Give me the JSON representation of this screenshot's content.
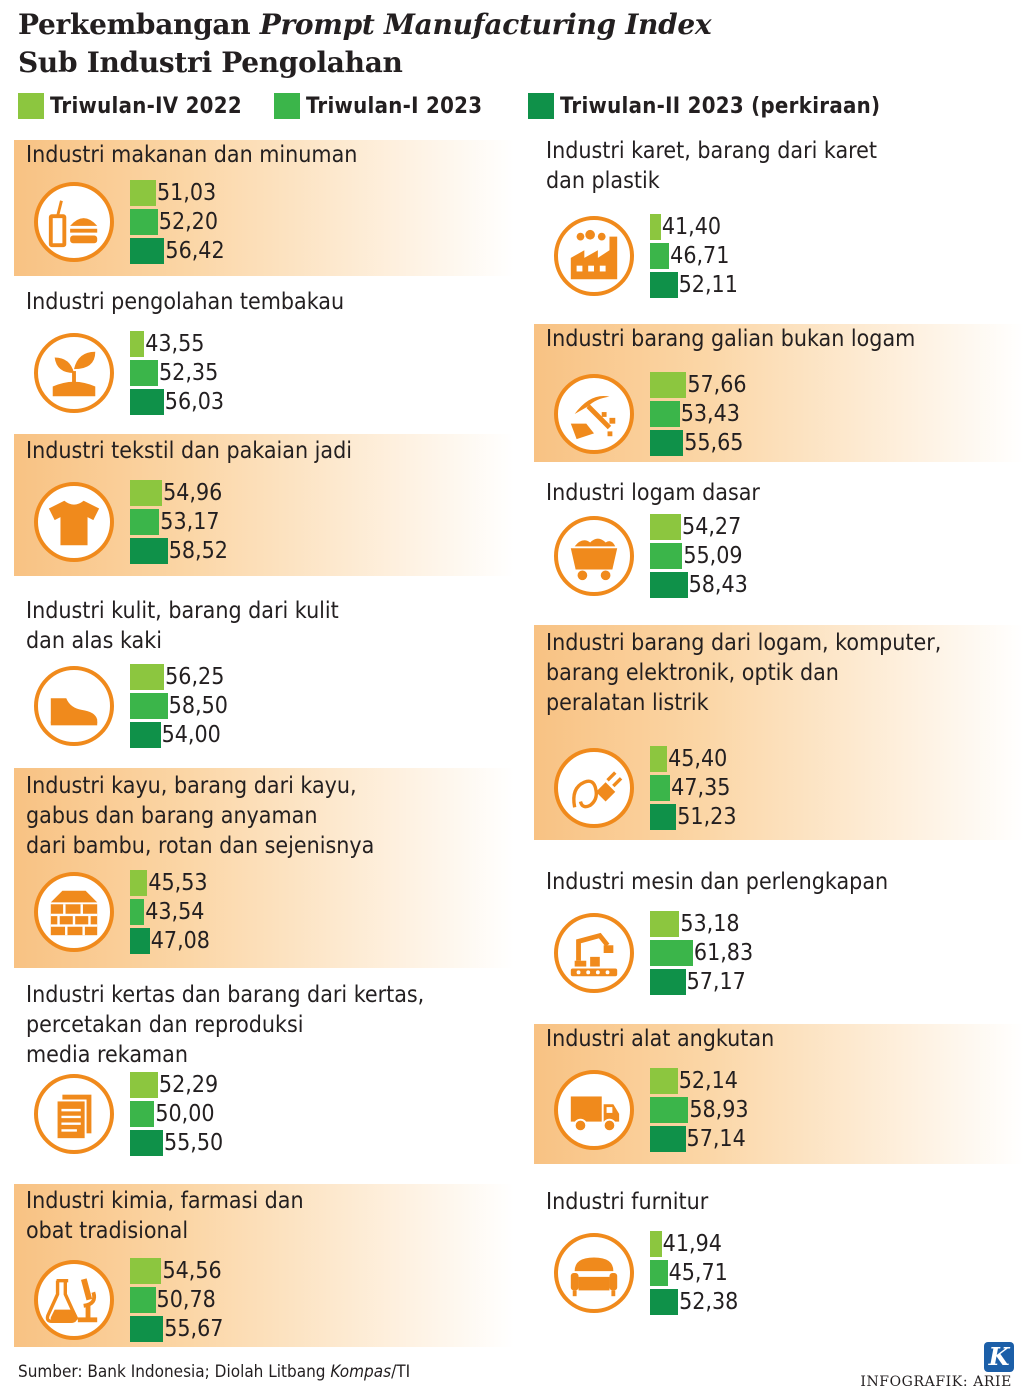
{
  "title": {
    "line1_a": "Perkembangan ",
    "line1_b": "Prompt Manufacturing Index",
    "line2": "Sub Industri Pengolahan"
  },
  "colors": {
    "q4_2022": "#8cc63f",
    "q1_2023": "#3bb54a",
    "q2_2023": "#0f9149",
    "icon": "#f08a1c"
  },
  "legend": [
    "Triwulan-IV 2022",
    "Triwulan-I 2023",
    "Triwulan-II 2023 (perkiraan)"
  ],
  "chart_data": {
    "type": "bar",
    "title": "Perkembangan Prompt Manufacturing Index Sub Industri Pengolahan",
    "series_names": [
      "Triwulan-IV 2022",
      "Triwulan-I 2023",
      "Triwulan-II 2023 (perkiraan)"
    ],
    "panels": [
      {
        "label": "Industri makanan dan minuman",
        "icon": "food-drink-icon",
        "values": [
          51.03,
          52.2,
          56.42
        ],
        "labels": [
          "51,03",
          "52,20",
          "56,42"
        ]
      },
      {
        "label": "Industri pengolahan tembakau",
        "icon": "plant-icon",
        "values": [
          43.55,
          52.35,
          56.03
        ],
        "labels": [
          "43,55",
          "52,35",
          "56,03"
        ]
      },
      {
        "label": "Industri tekstil dan pakaian jadi",
        "icon": "tshirt-icon",
        "values": [
          54.96,
          53.17,
          58.52
        ],
        "labels": [
          "54,96",
          "53,17",
          "58,52"
        ]
      },
      {
        "label": "Industri kulit, barang dari kulit\ndan alas kaki",
        "icon": "shoe-icon",
        "values": [
          56.25,
          58.5,
          54.0
        ],
        "labels": [
          "56,25",
          "58,50",
          "54,00"
        ]
      },
      {
        "label": "Industri kayu, barang dari kayu,\ngabus dan barang anyaman\ndari bambu, rotan dan sejenisnya",
        "icon": "wood-crate-icon",
        "values": [
          45.53,
          43.54,
          47.08
        ],
        "labels": [
          "45,53",
          "43,54",
          "47,08"
        ]
      },
      {
        "label": "Industri kertas dan barang dari kertas,\npercetakan dan reproduksi\nmedia rekaman",
        "icon": "paper-icon",
        "values": [
          52.29,
          50.0,
          55.5
        ],
        "labels": [
          "52,29",
          "50,00",
          "55,50"
        ]
      },
      {
        "label": "Industri kimia, farmasi dan\nobat tradisional",
        "icon": "chemistry-icon",
        "values": [
          54.56,
          50.78,
          55.67
        ],
        "labels": [
          "54,56",
          "50,78",
          "55,67"
        ]
      },
      {
        "label": "Industri karet, barang dari karet\ndan plastik",
        "icon": "factory-icon",
        "values": [
          41.4,
          46.71,
          52.11
        ],
        "labels": [
          "41,40",
          "46,71",
          "52,11"
        ]
      },
      {
        "label": "Industri barang galian bukan logam",
        "icon": "mining-icon",
        "values": [
          57.66,
          53.43,
          55.65
        ],
        "labels": [
          "57,66",
          "53,43",
          "55,65"
        ]
      },
      {
        "label": "Industri logam dasar",
        "icon": "mine-cart-icon",
        "values": [
          54.27,
          55.09,
          58.43
        ],
        "labels": [
          "54,27",
          "55,09",
          "58,43"
        ]
      },
      {
        "label": "Industri barang dari logam, komputer,\nbarang elektronik, optik dan\nperalatan listrik",
        "icon": "plug-icon",
        "values": [
          45.4,
          47.35,
          51.23
        ],
        "labels": [
          "45,40",
          "47,35",
          "51,23"
        ]
      },
      {
        "label": "Industri mesin dan perlengkapan",
        "icon": "robot-arm-icon",
        "values": [
          53.18,
          61.83,
          57.17
        ],
        "labels": [
          "53,18",
          "61,83",
          "57,17"
        ]
      },
      {
        "label": "Industri alat angkutan",
        "icon": "truck-icon",
        "values": [
          52.14,
          58.93,
          57.14
        ],
        "labels": [
          "52,14",
          "58,93",
          "57,14"
        ]
      },
      {
        "label": "Industri furnitur",
        "icon": "sofa-icon",
        "values": [
          41.94,
          45.71,
          52.38
        ],
        "labels": [
          "41,94",
          "45,71",
          "52,38"
        ]
      }
    ]
  },
  "footer": {
    "source_a": "Sumber: Bank Indonesia; Diolah Litbang ",
    "source_b": "Kompas",
    "source_c": "/TI",
    "credit": "INFOGRAFIK: ARIE",
    "logo": "K"
  }
}
